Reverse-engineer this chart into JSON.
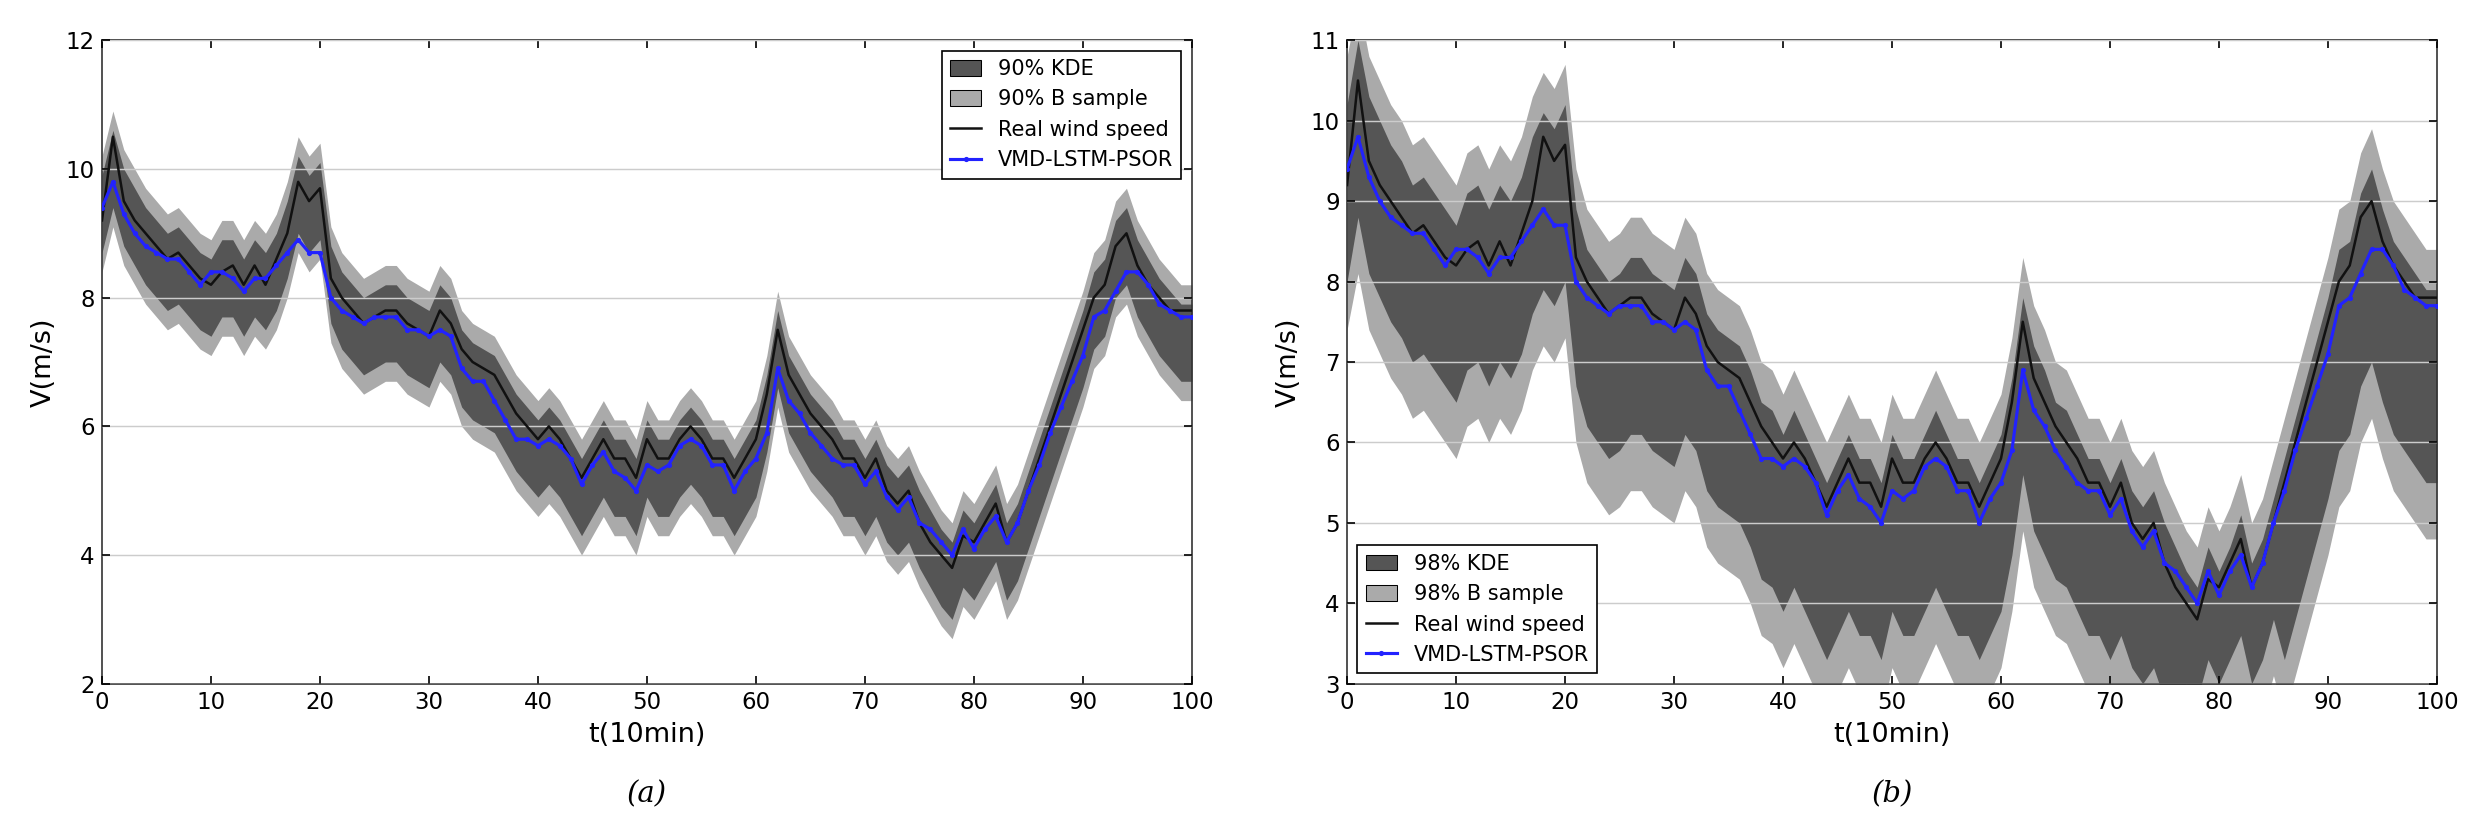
{
  "fig_width": 16.6,
  "fig_height": 5.6,
  "dpi": 150,
  "background_color": "#ffffff",
  "subplot_a": {
    "title": "(a)",
    "xlabel": "t(10min)",
    "ylabel": "V(m/s)",
    "xlim": [
      0,
      100
    ],
    "ylim": [
      2,
      12
    ],
    "yticks": [
      2,
      4,
      6,
      8,
      10,
      12
    ],
    "xticks": [
      0,
      10,
      20,
      30,
      40,
      50,
      60,
      70,
      80,
      90,
      100
    ],
    "legend_loc": "upper right",
    "legend_labels": [
      "90% KDE",
      "90% B sample",
      "Real wind speed",
      "VMD-LSTM-PSOR"
    ],
    "t": [
      0,
      1,
      2,
      3,
      4,
      5,
      6,
      7,
      8,
      9,
      10,
      11,
      12,
      13,
      14,
      15,
      16,
      17,
      18,
      19,
      20,
      21,
      22,
      23,
      24,
      25,
      26,
      27,
      28,
      29,
      30,
      31,
      32,
      33,
      34,
      35,
      36,
      37,
      38,
      39,
      40,
      41,
      42,
      43,
      44,
      45,
      46,
      47,
      48,
      49,
      50,
      51,
      52,
      53,
      54,
      55,
      56,
      57,
      58,
      59,
      60,
      61,
      62,
      63,
      64,
      65,
      66,
      67,
      68,
      69,
      70,
      71,
      72,
      73,
      74,
      75,
      76,
      77,
      78,
      79,
      80,
      81,
      82,
      83,
      84,
      85,
      86,
      87,
      88,
      89,
      90,
      91,
      92,
      93,
      94,
      95,
      96,
      97,
      98,
      99,
      100
    ],
    "real_wind": [
      9.2,
      10.5,
      9.5,
      9.2,
      9.0,
      8.8,
      8.6,
      8.7,
      8.5,
      8.3,
      8.2,
      8.4,
      8.5,
      8.2,
      8.5,
      8.2,
      8.6,
      9.0,
      9.8,
      9.5,
      9.7,
      8.3,
      8.0,
      7.8,
      7.6,
      7.7,
      7.8,
      7.8,
      7.6,
      7.5,
      7.4,
      7.8,
      7.6,
      7.2,
      7.0,
      6.9,
      6.8,
      6.5,
      6.2,
      6.0,
      5.8,
      6.0,
      5.8,
      5.5,
      5.2,
      5.5,
      5.8,
      5.5,
      5.5,
      5.2,
      5.8,
      5.5,
      5.5,
      5.8,
      6.0,
      5.8,
      5.5,
      5.5,
      5.2,
      5.5,
      5.8,
      6.5,
      7.5,
      6.8,
      6.5,
      6.2,
      6.0,
      5.8,
      5.5,
      5.5,
      5.2,
      5.5,
      5.0,
      4.8,
      5.0,
      4.5,
      4.2,
      4.0,
      3.8,
      4.3,
      4.2,
      4.5,
      4.8,
      4.2,
      4.5,
      5.0,
      5.5,
      6.0,
      6.5,
      7.0,
      7.5,
      8.0,
      8.2,
      8.8,
      9.0,
      8.5,
      8.2,
      8.0,
      7.8,
      7.8,
      7.8
    ],
    "vmd_lstm": [
      9.4,
      9.8,
      9.3,
      9.0,
      8.8,
      8.7,
      8.6,
      8.6,
      8.4,
      8.2,
      8.4,
      8.4,
      8.3,
      8.1,
      8.3,
      8.3,
      8.5,
      8.7,
      8.9,
      8.7,
      8.7,
      8.0,
      7.8,
      7.7,
      7.6,
      7.7,
      7.7,
      7.7,
      7.5,
      7.5,
      7.4,
      7.5,
      7.4,
      6.9,
      6.7,
      6.7,
      6.4,
      6.1,
      5.8,
      5.8,
      5.7,
      5.8,
      5.7,
      5.5,
      5.1,
      5.4,
      5.6,
      5.3,
      5.2,
      5.0,
      5.4,
      5.3,
      5.4,
      5.7,
      5.8,
      5.7,
      5.4,
      5.4,
      5.0,
      5.3,
      5.5,
      5.9,
      6.9,
      6.4,
      6.2,
      5.9,
      5.7,
      5.5,
      5.4,
      5.4,
      5.1,
      5.3,
      4.9,
      4.7,
      4.9,
      4.5,
      4.4,
      4.2,
      4.0,
      4.4,
      4.1,
      4.4,
      4.6,
      4.2,
      4.5,
      5.0,
      5.4,
      5.9,
      6.3,
      6.7,
      7.1,
      7.7,
      7.8,
      8.1,
      8.4,
      8.4,
      8.2,
      7.9,
      7.8,
      7.7,
      7.7
    ],
    "kde_upper": [
      9.9,
      10.6,
      10.0,
      9.7,
      9.4,
      9.2,
      9.0,
      9.1,
      8.9,
      8.7,
      8.6,
      8.9,
      8.9,
      8.6,
      8.9,
      8.7,
      9.0,
      9.5,
      10.2,
      9.9,
      10.1,
      8.8,
      8.4,
      8.2,
      8.0,
      8.1,
      8.2,
      8.2,
      8.0,
      7.9,
      7.8,
      8.2,
      8.0,
      7.5,
      7.3,
      7.2,
      7.1,
      6.8,
      6.5,
      6.3,
      6.1,
      6.3,
      6.1,
      5.8,
      5.5,
      5.8,
      6.1,
      5.8,
      5.8,
      5.5,
      6.1,
      5.8,
      5.8,
      6.1,
      6.3,
      6.1,
      5.8,
      5.8,
      5.5,
      5.8,
      6.1,
      6.8,
      7.8,
      7.1,
      6.8,
      6.5,
      6.3,
      6.1,
      5.8,
      5.8,
      5.5,
      5.8,
      5.4,
      5.2,
      5.4,
      5.0,
      4.7,
      4.4,
      4.2,
      4.7,
      4.5,
      4.8,
      5.1,
      4.5,
      4.8,
      5.3,
      5.8,
      6.3,
      6.8,
      7.3,
      7.8,
      8.4,
      8.6,
      9.2,
      9.4,
      8.9,
      8.6,
      8.3,
      8.1,
      7.9,
      7.9
    ],
    "kde_lower": [
      8.7,
      9.4,
      8.8,
      8.5,
      8.2,
      8.0,
      7.8,
      7.9,
      7.7,
      7.5,
      7.4,
      7.7,
      7.7,
      7.4,
      7.7,
      7.5,
      7.8,
      8.3,
      9.0,
      8.7,
      8.9,
      7.6,
      7.2,
      7.0,
      6.8,
      6.9,
      7.0,
      7.0,
      6.8,
      6.7,
      6.6,
      7.0,
      6.8,
      6.3,
      6.1,
      6.0,
      5.9,
      5.6,
      5.3,
      5.1,
      4.9,
      5.1,
      4.9,
      4.6,
      4.3,
      4.6,
      4.9,
      4.6,
      4.6,
      4.3,
      4.9,
      4.6,
      4.6,
      4.9,
      5.1,
      4.9,
      4.6,
      4.6,
      4.3,
      4.6,
      4.9,
      5.6,
      6.6,
      5.9,
      5.6,
      5.3,
      5.1,
      4.9,
      4.6,
      4.6,
      4.3,
      4.6,
      4.2,
      4.0,
      4.2,
      3.8,
      3.5,
      3.2,
      3.0,
      3.5,
      3.3,
      3.6,
      3.9,
      3.3,
      3.6,
      4.1,
      4.6,
      5.1,
      5.6,
      6.1,
      6.6,
      7.2,
      7.4,
      8.0,
      8.2,
      7.7,
      7.4,
      7.1,
      6.9,
      6.7,
      6.7
    ],
    "bsample_upper": [
      10.2,
      10.9,
      10.3,
      10.0,
      9.7,
      9.5,
      9.3,
      9.4,
      9.2,
      9.0,
      8.9,
      9.2,
      9.2,
      8.9,
      9.2,
      9.0,
      9.3,
      9.8,
      10.5,
      10.2,
      10.4,
      9.1,
      8.7,
      8.5,
      8.3,
      8.4,
      8.5,
      8.5,
      8.3,
      8.2,
      8.1,
      8.5,
      8.3,
      7.8,
      7.6,
      7.5,
      7.4,
      7.1,
      6.8,
      6.6,
      6.4,
      6.6,
      6.4,
      6.1,
      5.8,
      6.1,
      6.4,
      6.1,
      6.1,
      5.8,
      6.4,
      6.1,
      6.1,
      6.4,
      6.6,
      6.4,
      6.1,
      6.1,
      5.8,
      6.1,
      6.4,
      7.1,
      8.1,
      7.4,
      7.1,
      6.8,
      6.6,
      6.4,
      6.1,
      6.1,
      5.8,
      6.1,
      5.7,
      5.5,
      5.7,
      5.3,
      5.0,
      4.7,
      4.5,
      5.0,
      4.8,
      5.1,
      5.4,
      4.8,
      5.1,
      5.6,
      6.1,
      6.6,
      7.1,
      7.6,
      8.1,
      8.7,
      8.9,
      9.5,
      9.7,
      9.2,
      8.9,
      8.6,
      8.4,
      8.2,
      8.2
    ],
    "bsample_lower": [
      8.4,
      9.1,
      8.5,
      8.2,
      7.9,
      7.7,
      7.5,
      7.6,
      7.4,
      7.2,
      7.1,
      7.4,
      7.4,
      7.1,
      7.4,
      7.2,
      7.5,
      8.0,
      8.7,
      8.4,
      8.6,
      7.3,
      6.9,
      6.7,
      6.5,
      6.6,
      6.7,
      6.7,
      6.5,
      6.4,
      6.3,
      6.7,
      6.5,
      6.0,
      5.8,
      5.7,
      5.6,
      5.3,
      5.0,
      4.8,
      4.6,
      4.8,
      4.6,
      4.3,
      4.0,
      4.3,
      4.6,
      4.3,
      4.3,
      4.0,
      4.6,
      4.3,
      4.3,
      4.6,
      4.8,
      4.6,
      4.3,
      4.3,
      4.0,
      4.3,
      4.6,
      5.3,
      6.3,
      5.6,
      5.3,
      5.0,
      4.8,
      4.6,
      4.3,
      4.3,
      4.0,
      4.3,
      3.9,
      3.7,
      3.9,
      3.5,
      3.2,
      2.9,
      2.7,
      3.2,
      3.0,
      3.3,
      3.6,
      3.0,
      3.3,
      3.8,
      4.3,
      4.8,
      5.3,
      5.8,
      6.3,
      6.9,
      7.1,
      7.7,
      7.9,
      7.4,
      7.1,
      6.8,
      6.6,
      6.4,
      6.4
    ]
  },
  "subplot_b": {
    "title": "(b)",
    "xlabel": "t(10min)",
    "ylabel": "V(m/s)",
    "xlim": [
      0,
      100
    ],
    "ylim": [
      3,
      11
    ],
    "yticks": [
      3,
      4,
      5,
      6,
      7,
      8,
      9,
      10,
      11
    ],
    "xticks": [
      0,
      10,
      20,
      30,
      40,
      50,
      60,
      70,
      80,
      90,
      100
    ],
    "legend_loc": "lower left",
    "legend_labels": [
      "98% KDE",
      "98% B sample",
      "Real wind speed",
      "VMD-LSTM-PSOR"
    ],
    "t": [
      0,
      1,
      2,
      3,
      4,
      5,
      6,
      7,
      8,
      9,
      10,
      11,
      12,
      13,
      14,
      15,
      16,
      17,
      18,
      19,
      20,
      21,
      22,
      23,
      24,
      25,
      26,
      27,
      28,
      29,
      30,
      31,
      32,
      33,
      34,
      35,
      36,
      37,
      38,
      39,
      40,
      41,
      42,
      43,
      44,
      45,
      46,
      47,
      48,
      49,
      50,
      51,
      52,
      53,
      54,
      55,
      56,
      57,
      58,
      59,
      60,
      61,
      62,
      63,
      64,
      65,
      66,
      67,
      68,
      69,
      70,
      71,
      72,
      73,
      74,
      75,
      76,
      77,
      78,
      79,
      80,
      81,
      82,
      83,
      84,
      85,
      86,
      87,
      88,
      89,
      90,
      91,
      92,
      93,
      94,
      95,
      96,
      97,
      98,
      99,
      100
    ],
    "real_wind": [
      9.2,
      10.5,
      9.5,
      9.2,
      9.0,
      8.8,
      8.6,
      8.7,
      8.5,
      8.3,
      8.2,
      8.4,
      8.5,
      8.2,
      8.5,
      8.2,
      8.6,
      9.0,
      9.8,
      9.5,
      9.7,
      8.3,
      8.0,
      7.8,
      7.6,
      7.7,
      7.8,
      7.8,
      7.6,
      7.5,
      7.4,
      7.8,
      7.6,
      7.2,
      7.0,
      6.9,
      6.8,
      6.5,
      6.2,
      6.0,
      5.8,
      6.0,
      5.8,
      5.5,
      5.2,
      5.5,
      5.8,
      5.5,
      5.5,
      5.2,
      5.8,
      5.5,
      5.5,
      5.8,
      6.0,
      5.8,
      5.5,
      5.5,
      5.2,
      5.5,
      5.8,
      6.5,
      7.5,
      6.8,
      6.5,
      6.2,
      6.0,
      5.8,
      5.5,
      5.5,
      5.2,
      5.5,
      5.0,
      4.8,
      5.0,
      4.5,
      4.2,
      4.0,
      3.8,
      4.3,
      4.2,
      4.5,
      4.8,
      4.2,
      4.5,
      5.0,
      5.5,
      6.0,
      6.5,
      7.0,
      7.5,
      8.0,
      8.2,
      8.8,
      9.0,
      8.5,
      8.2,
      8.0,
      7.8,
      7.8,
      7.8
    ],
    "vmd_lstm": [
      9.4,
      9.8,
      9.3,
      9.0,
      8.8,
      8.7,
      8.6,
      8.6,
      8.4,
      8.2,
      8.4,
      8.4,
      8.3,
      8.1,
      8.3,
      8.3,
      8.5,
      8.7,
      8.9,
      8.7,
      8.7,
      8.0,
      7.8,
      7.7,
      7.6,
      7.7,
      7.7,
      7.7,
      7.5,
      7.5,
      7.4,
      7.5,
      7.4,
      6.9,
      6.7,
      6.7,
      6.4,
      6.1,
      5.8,
      5.8,
      5.7,
      5.8,
      5.7,
      5.5,
      5.1,
      5.4,
      5.6,
      5.3,
      5.2,
      5.0,
      5.4,
      5.3,
      5.4,
      5.7,
      5.8,
      5.7,
      5.4,
      5.4,
      5.0,
      5.3,
      5.5,
      5.9,
      6.9,
      6.4,
      6.2,
      5.9,
      5.7,
      5.5,
      5.4,
      5.4,
      5.1,
      5.3,
      4.9,
      4.7,
      4.9,
      4.5,
      4.4,
      4.2,
      4.0,
      4.4,
      4.1,
      4.4,
      4.6,
      4.2,
      4.5,
      5.0,
      5.4,
      5.9,
      6.3,
      6.7,
      7.1,
      7.7,
      7.8,
      8.1,
      8.4,
      8.4,
      8.2,
      7.9,
      7.8,
      7.7,
      7.7
    ],
    "kde_upper": [
      10.2,
      11.0,
      10.3,
      10.0,
      9.7,
      9.5,
      9.2,
      9.3,
      9.1,
      8.9,
      8.7,
      9.1,
      9.2,
      8.9,
      9.2,
      9.0,
      9.3,
      9.8,
      10.1,
      9.9,
      10.2,
      8.9,
      8.4,
      8.2,
      8.0,
      8.1,
      8.3,
      8.3,
      8.1,
      8.0,
      7.9,
      8.3,
      8.1,
      7.6,
      7.4,
      7.3,
      7.2,
      6.9,
      6.5,
      6.4,
      6.1,
      6.4,
      6.1,
      5.8,
      5.5,
      5.8,
      6.1,
      5.8,
      5.8,
      5.5,
      6.1,
      5.8,
      5.8,
      6.1,
      6.4,
      6.1,
      5.8,
      5.8,
      5.5,
      5.8,
      6.1,
      6.8,
      7.8,
      7.2,
      6.9,
      6.5,
      6.4,
      6.1,
      5.8,
      5.8,
      5.5,
      5.8,
      5.4,
      5.2,
      5.4,
      5.0,
      4.7,
      4.4,
      4.2,
      4.7,
      4.4,
      4.7,
      5.1,
      4.5,
      4.8,
      5.3,
      5.8,
      6.3,
      6.8,
      7.3,
      7.8,
      8.4,
      8.5,
      9.1,
      9.4,
      8.9,
      8.5,
      8.3,
      8.1,
      7.9,
      7.9
    ],
    "kde_lower": [
      8.0,
      8.8,
      8.1,
      7.8,
      7.5,
      7.3,
      7.0,
      7.1,
      6.9,
      6.7,
      6.5,
      6.9,
      7.0,
      6.7,
      7.0,
      6.8,
      7.1,
      7.6,
      7.9,
      7.7,
      8.0,
      6.7,
      6.2,
      6.0,
      5.8,
      5.9,
      6.1,
      6.1,
      5.9,
      5.8,
      5.7,
      6.1,
      5.9,
      5.4,
      5.2,
      5.1,
      5.0,
      4.7,
      4.3,
      4.2,
      3.9,
      4.2,
      3.9,
      3.6,
      3.3,
      3.6,
      3.9,
      3.6,
      3.6,
      3.3,
      3.9,
      3.6,
      3.6,
      3.9,
      4.2,
      3.9,
      3.6,
      3.6,
      3.3,
      3.6,
      3.9,
      4.6,
      5.6,
      4.9,
      4.6,
      4.3,
      4.2,
      3.9,
      3.6,
      3.6,
      3.3,
      3.6,
      3.2,
      3.0,
      3.2,
      2.8,
      2.5,
      3.0,
      2.8,
      3.3,
      3.0,
      3.3,
      3.6,
      3.0,
      3.3,
      3.8,
      3.3,
      3.8,
      4.3,
      4.8,
      5.3,
      5.9,
      6.1,
      6.7,
      7.0,
      6.5,
      6.1,
      5.9,
      5.7,
      5.5,
      5.5
    ],
    "bsample_upper": [
      10.8,
      11.5,
      10.8,
      10.5,
      10.2,
      10.0,
      9.7,
      9.8,
      9.6,
      9.4,
      9.2,
      9.6,
      9.7,
      9.4,
      9.7,
      9.5,
      9.8,
      10.3,
      10.6,
      10.4,
      10.7,
      9.4,
      8.9,
      8.7,
      8.5,
      8.6,
      8.8,
      8.8,
      8.6,
      8.5,
      8.4,
      8.8,
      8.6,
      8.1,
      7.9,
      7.8,
      7.7,
      7.4,
      7.0,
      6.9,
      6.6,
      6.9,
      6.6,
      6.3,
      6.0,
      6.3,
      6.6,
      6.3,
      6.3,
      6.0,
      6.6,
      6.3,
      6.3,
      6.6,
      6.9,
      6.6,
      6.3,
      6.3,
      6.0,
      6.3,
      6.6,
      7.3,
      8.3,
      7.7,
      7.4,
      7.0,
      6.9,
      6.6,
      6.3,
      6.3,
      6.0,
      6.3,
      5.9,
      5.7,
      5.9,
      5.5,
      5.2,
      4.9,
      4.7,
      5.2,
      4.9,
      5.2,
      5.6,
      5.0,
      5.3,
      5.8,
      6.3,
      6.8,
      7.3,
      7.8,
      8.3,
      8.9,
      9.0,
      9.6,
      9.9,
      9.4,
      9.0,
      8.8,
      8.6,
      8.4,
      8.4
    ],
    "bsample_lower": [
      7.4,
      8.1,
      7.4,
      7.1,
      6.8,
      6.6,
      6.3,
      6.4,
      6.2,
      6.0,
      5.8,
      6.2,
      6.3,
      6.0,
      6.3,
      6.1,
      6.4,
      6.9,
      7.2,
      7.0,
      7.3,
      6.0,
      5.5,
      5.3,
      5.1,
      5.2,
      5.4,
      5.4,
      5.2,
      5.1,
      5.0,
      5.4,
      5.2,
      4.7,
      4.5,
      4.4,
      4.3,
      4.0,
      3.6,
      3.5,
      3.2,
      3.5,
      3.2,
      2.9,
      2.6,
      2.9,
      3.2,
      2.9,
      2.9,
      2.6,
      3.2,
      2.9,
      2.9,
      3.2,
      3.5,
      3.2,
      2.9,
      2.9,
      2.6,
      2.9,
      3.2,
      3.9,
      4.9,
      4.2,
      3.9,
      3.6,
      3.5,
      3.2,
      2.9,
      2.9,
      2.6,
      2.9,
      2.5,
      2.3,
      2.5,
      2.1,
      1.8,
      2.3,
      2.1,
      2.6,
      2.3,
      2.6,
      2.9,
      2.3,
      2.6,
      3.1,
      2.6,
      3.1,
      3.6,
      4.1,
      4.6,
      5.2,
      5.4,
      6.0,
      6.3,
      5.8,
      5.4,
      5.2,
      5.0,
      4.8,
      4.8
    ]
  },
  "kde_dark_color": "#555555",
  "bsample_light_color": "#aaaaaa",
  "real_wind_color": "#111111",
  "vmd_lstm_color": "#2222ff",
  "real_wind_lw": 1.2,
  "vmd_lstm_lw": 1.5,
  "vmd_lstm_marker": ".",
  "vmd_lstm_markersize": 3,
  "grid_color": "#cccccc",
  "grid_lw": 0.7,
  "tick_fontsize": 11,
  "label_fontsize": 13,
  "legend_fontsize": 10,
  "title_fontsize": 14,
  "spine_color": "#333333",
  "spine_lw": 0.8
}
